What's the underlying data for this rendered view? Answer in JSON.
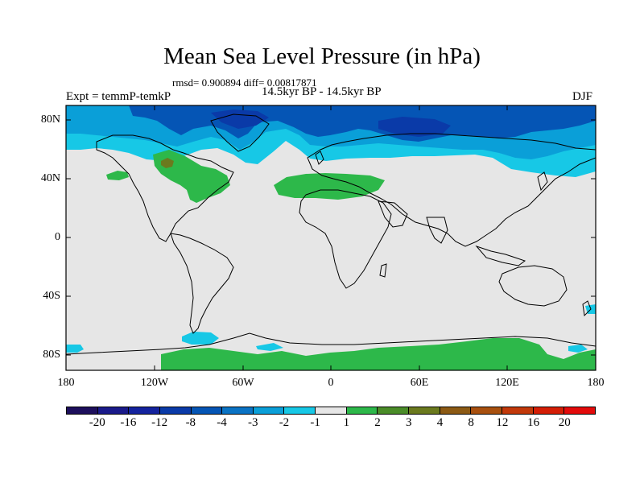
{
  "title": "Mean Sea Level Pressure (in hPa)",
  "stats": "rmsd= 0.900894 diff= 0.00817871",
  "period": "14.5kyr BP - 14.5kyr BP",
  "expt": "Expt = temmP-temkP",
  "season": "DJF",
  "lat_labels": [
    "80N",
    "40N",
    "0",
    "40S",
    "80S"
  ],
  "lon_labels": [
    "180",
    "120W",
    "60W",
    "0",
    "60E",
    "120E",
    "180"
  ],
  "colorbar": {
    "colors": [
      "#1d0f5c",
      "#1a1a8a",
      "#14239e",
      "#0a3aa8",
      "#0555b5",
      "#0a73c4",
      "#0a9fd8",
      "#17c8e6",
      "#e6e6e6",
      "#2db84a",
      "#4a8c28",
      "#6b7a1e",
      "#8c5a14",
      "#a8500f",
      "#c2390a",
      "#d41e06",
      "#e30b0b"
    ],
    "labels": [
      "-20",
      "-16",
      "-12",
      "-8",
      "-4",
      "-3",
      "-2",
      "-1",
      "1",
      "2",
      "3",
      "4",
      "8",
      "12",
      "16",
      "20"
    ]
  },
  "colors": {
    "background": "#e6e6e6",
    "negative_deep": "#0555b5",
    "negative_mid": "#0a9fd8",
    "negative_light": "#17c8e6",
    "positive_light": "#2db84a",
    "positive_mid": "#6b7a1e"
  }
}
